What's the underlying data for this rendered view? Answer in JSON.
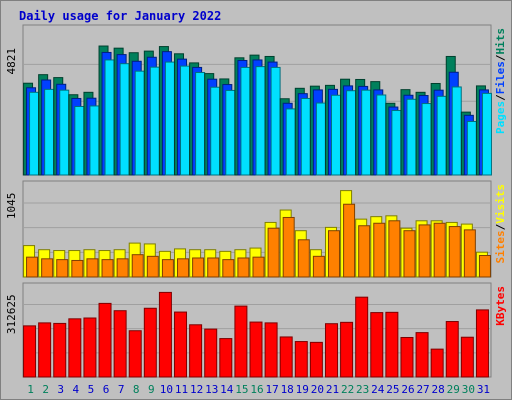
{
  "chart_data": {
    "type": "bar",
    "title": "Daily usage for January 2022",
    "categories": [
      "1",
      "2",
      "3",
      "4",
      "5",
      "6",
      "7",
      "8",
      "9",
      "10",
      "11",
      "12",
      "13",
      "14",
      "15",
      "16",
      "17",
      "18",
      "19",
      "20",
      "21",
      "22",
      "23",
      "24",
      "25",
      "26",
      "27",
      "28",
      "29",
      "30",
      "31"
    ],
    "weekend_days": [
      "1",
      "2",
      "8",
      "9",
      "15",
      "16",
      "22",
      "23",
      "29",
      "30"
    ],
    "colors": {
      "hits": "#00805c",
      "files": "#0040ff",
      "pages": "#00e0ff",
      "visits": "#ffff00",
      "sites": "#ff8000",
      "kbytes": "#ff0000",
      "title": "#0000cc",
      "weekday_label": "#0000cc",
      "weekend_label": "#00805c",
      "background": "#c0c0c0"
    },
    "panels": [
      {
        "id": "hits-files-pages",
        "max_label": "4821",
        "ylim": [
          0,
          4821
        ],
        "legend": [
          "Pages",
          "/",
          "Files",
          "/",
          "Hits"
        ],
        "legend_colors": [
          "#00e0ff",
          "#000000",
          "#0040ff",
          "#000000",
          "#00805c"
        ],
        "series": [
          {
            "name": "Hits",
            "values": [
              3430,
              3750,
              3640,
              3000,
              3090,
              4820,
              4740,
              4570,
              4630,
              4800,
              4530,
              4190,
              3790,
              3590,
              4380,
              4480,
              4430,
              2850,
              3240,
              3320,
              3350,
              3580,
              3570,
              3490,
              2680,
              3190,
              3090,
              3420,
              4430,
              2350,
              3330
            ]
          },
          {
            "name": "Files",
            "values": [
              3260,
              3550,
              3390,
              2860,
              2870,
              4580,
              4500,
              4250,
              4400,
              4610,
              4330,
              4020,
              3580,
              3380,
              4280,
              4300,
              4220,
              2680,
              3040,
              3180,
              3200,
              3330,
              3310,
              3180,
              2540,
              2980,
              2970,
              3170,
              3840,
              2230,
              3180
            ]
          },
          {
            "name": "Pages",
            "values": [
              3090,
              3200,
              3170,
              2560,
              2580,
              4300,
              4160,
              3880,
              4030,
              4220,
              4070,
              3830,
              3280,
              3160,
              4020,
              4050,
              4020,
              2470,
              2860,
              2690,
              2980,
              3150,
              3170,
              2990,
              2410,
              2830,
              2670,
              2940,
              3290,
              2000,
              3050
            ]
          }
        ]
      },
      {
        "id": "visits-sites",
        "max_label": "1045",
        "ylim": [
          0,
          1045
        ],
        "legend": [
          "Sites",
          "/",
          "Visits"
        ],
        "legend_colors": [
          "#ff8000",
          "#000000",
          "#ffff00"
        ],
        "series": [
          {
            "name": "Visits",
            "values": [
              380,
              330,
              320,
              320,
              330,
              320,
              330,
              410,
              400,
              310,
              340,
              330,
              330,
              310,
              330,
              350,
              660,
              810,
              560,
              330,
              600,
              1045,
              700,
              730,
              740,
              590,
              680,
              680,
              660,
              640,
              300
            ]
          },
          {
            "name": "Sites",
            "values": [
              240,
              220,
              210,
              200,
              220,
              210,
              220,
              270,
              250,
              210,
              220,
              230,
              230,
              210,
              230,
              240,
              590,
              720,
              450,
              250,
              560,
              880,
              620,
              650,
              680,
              560,
              630,
              650,
              610,
              570,
              260
            ]
          }
        ]
      },
      {
        "id": "kbytes",
        "max_label": "312625",
        "ylim": [
          0,
          312625
        ],
        "legend": [
          "KBytes"
        ],
        "legend_colors": [
          "#ff0000"
        ],
        "series": [
          {
            "name": "KBytes",
            "values": [
              189000,
              200000,
              198000,
              215000,
              218000,
              272000,
              245000,
              171000,
              254000,
              312625,
              240000,
              193000,
              177000,
              142000,
              262000,
              203000,
              200000,
              148000,
              131000,
              128000,
              197000,
              202000,
              295000,
              238000,
              239000,
              146000,
              164000,
              103000,
              205000,
              147000,
              248000
            ]
          }
        ]
      }
    ]
  }
}
